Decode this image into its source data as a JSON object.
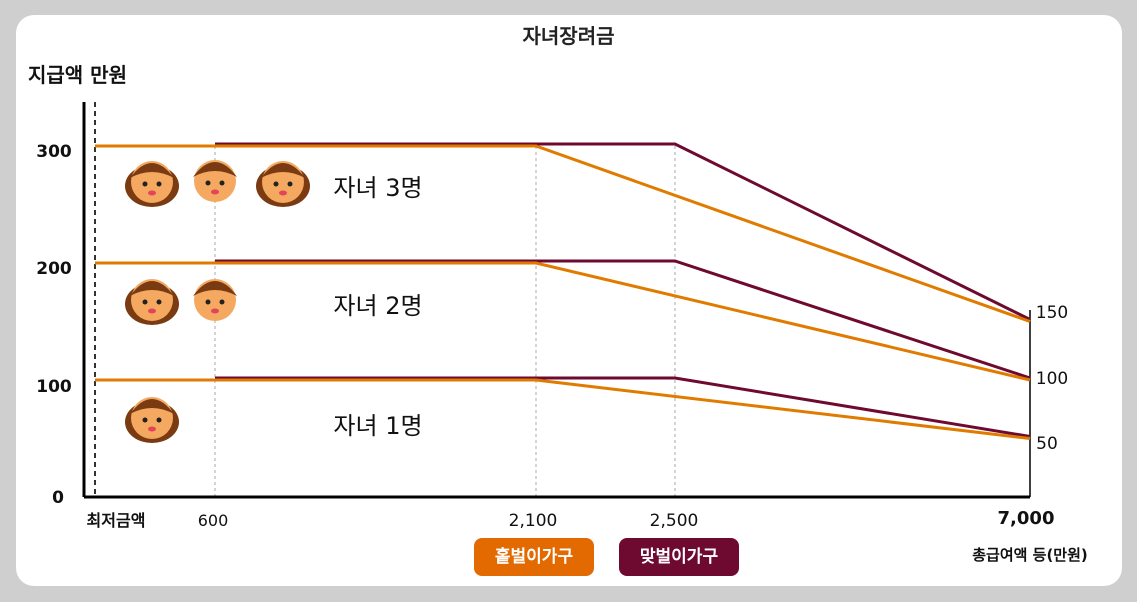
{
  "title": "자녀장려금",
  "chart_data": {
    "type": "line",
    "ylabel": "지급액 만원",
    "xlabel": "총급여액 등(만원)",
    "y_ticks": [
      "0",
      "100",
      "200",
      "300"
    ],
    "x_ticks": [
      "최저금액",
      "600",
      "2,100",
      "2,500",
      "7,000"
    ],
    "right_ticks": [
      "150",
      "100",
      "50"
    ],
    "series": [
      {
        "name": "홑벌이가구",
        "color": "#e07b00",
        "groups": [
          {
            "label": "자녀 1명",
            "points": [
              [
                0,
                100
              ],
              [
                2100,
                100
              ],
              [
                7000,
                50
              ]
            ]
          },
          {
            "label": "자녀 2명",
            "points": [
              [
                0,
                200
              ],
              [
                2100,
                200
              ],
              [
                7000,
                100
              ]
            ]
          },
          {
            "label": "자녀 3명",
            "points": [
              [
                0,
                300
              ],
              [
                2100,
                300
              ],
              [
                7000,
                150
              ]
            ]
          }
        ]
      },
      {
        "name": "맞벌이가구",
        "color": "#6e0a30",
        "groups": [
          {
            "label": "자녀 1명",
            "points": [
              [
                600,
                100
              ],
              [
                2500,
                100
              ],
              [
                7000,
                50
              ]
            ]
          },
          {
            "label": "자녀 2명",
            "points": [
              [
                600,
                200
              ],
              [
                2500,
                200
              ],
              [
                7000,
                100
              ]
            ]
          },
          {
            "label": "자녀 3명",
            "points": [
              [
                600,
                300
              ],
              [
                2500,
                300
              ],
              [
                7000,
                150
              ]
            ]
          }
        ]
      }
    ],
    "group_labels": [
      "자녀 3명",
      "자녀 2명",
      "자녀 1명"
    ],
    "ylim": [
      0,
      300
    ]
  }
}
